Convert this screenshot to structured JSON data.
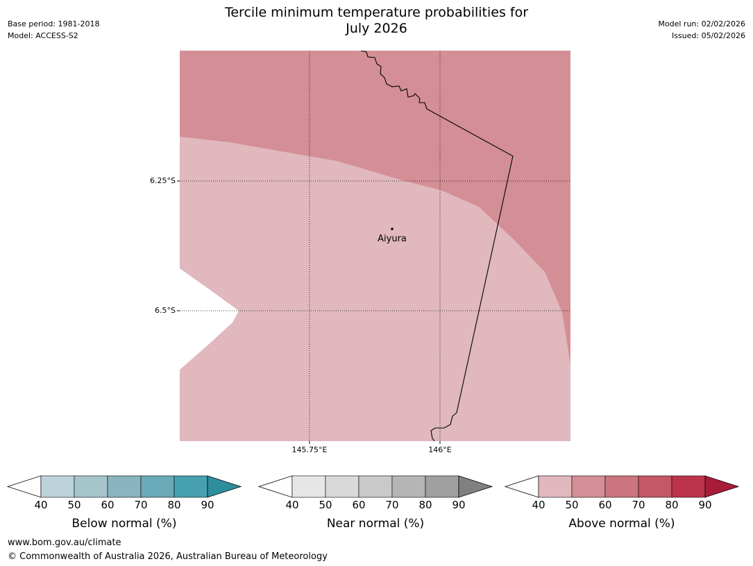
{
  "header": {
    "title_line1": "Tercile minimum temperature probabilities for",
    "title_line2": "July 2026",
    "base_period": "Base period: 1981-2018",
    "model": "Model: ACCESS-S2",
    "model_run": "Model run: 02/02/2026",
    "issued": "Issued: 05/02/2026"
  },
  "map": {
    "lat_labels": [
      "6.25°S",
      "6.5°S"
    ],
    "lon_labels": [
      "145.75°E",
      "146°E"
    ],
    "place": {
      "name": "Aiyura"
    },
    "zones": [
      {
        "category": "above",
        "band": "50-60"
      },
      {
        "category": "above",
        "band": "40-50"
      },
      {
        "category": "below_40",
        "band": "<40"
      }
    ]
  },
  "colorbars": [
    {
      "key": "below",
      "title": "Below normal (%)",
      "ticks": [
        "40",
        "50",
        "60",
        "70",
        "80",
        "90"
      ],
      "colors": [
        "#bcd3da",
        "#a5c5cb",
        "#89b5c0",
        "#6aa9b8",
        "#47a0ae"
      ],
      "extend_color": "#2f8e9d"
    },
    {
      "key": "near",
      "title": "Near normal (%)",
      "ticks": [
        "40",
        "50",
        "60",
        "70",
        "80",
        "90"
      ],
      "colors": [
        "#e6e6e6",
        "#d9d9d9",
        "#c9c9c9",
        "#b5b5b5",
        "#a0a0a0"
      ],
      "extend_color": "#808080"
    },
    {
      "key": "above",
      "title": "Above normal (%)",
      "ticks": [
        "40",
        "50",
        "60",
        "70",
        "80",
        "90"
      ],
      "colors": [
        "#e0b8bd",
        "#d48e95",
        "#cc757e",
        "#c45867",
        "#bc344c"
      ],
      "extend_color": "#a81c38"
    }
  ],
  "footer": {
    "url": "www.bom.gov.au/climate",
    "copyright": "© Commonwealth of Australia 2026, Australian Bureau of Meteorology"
  }
}
